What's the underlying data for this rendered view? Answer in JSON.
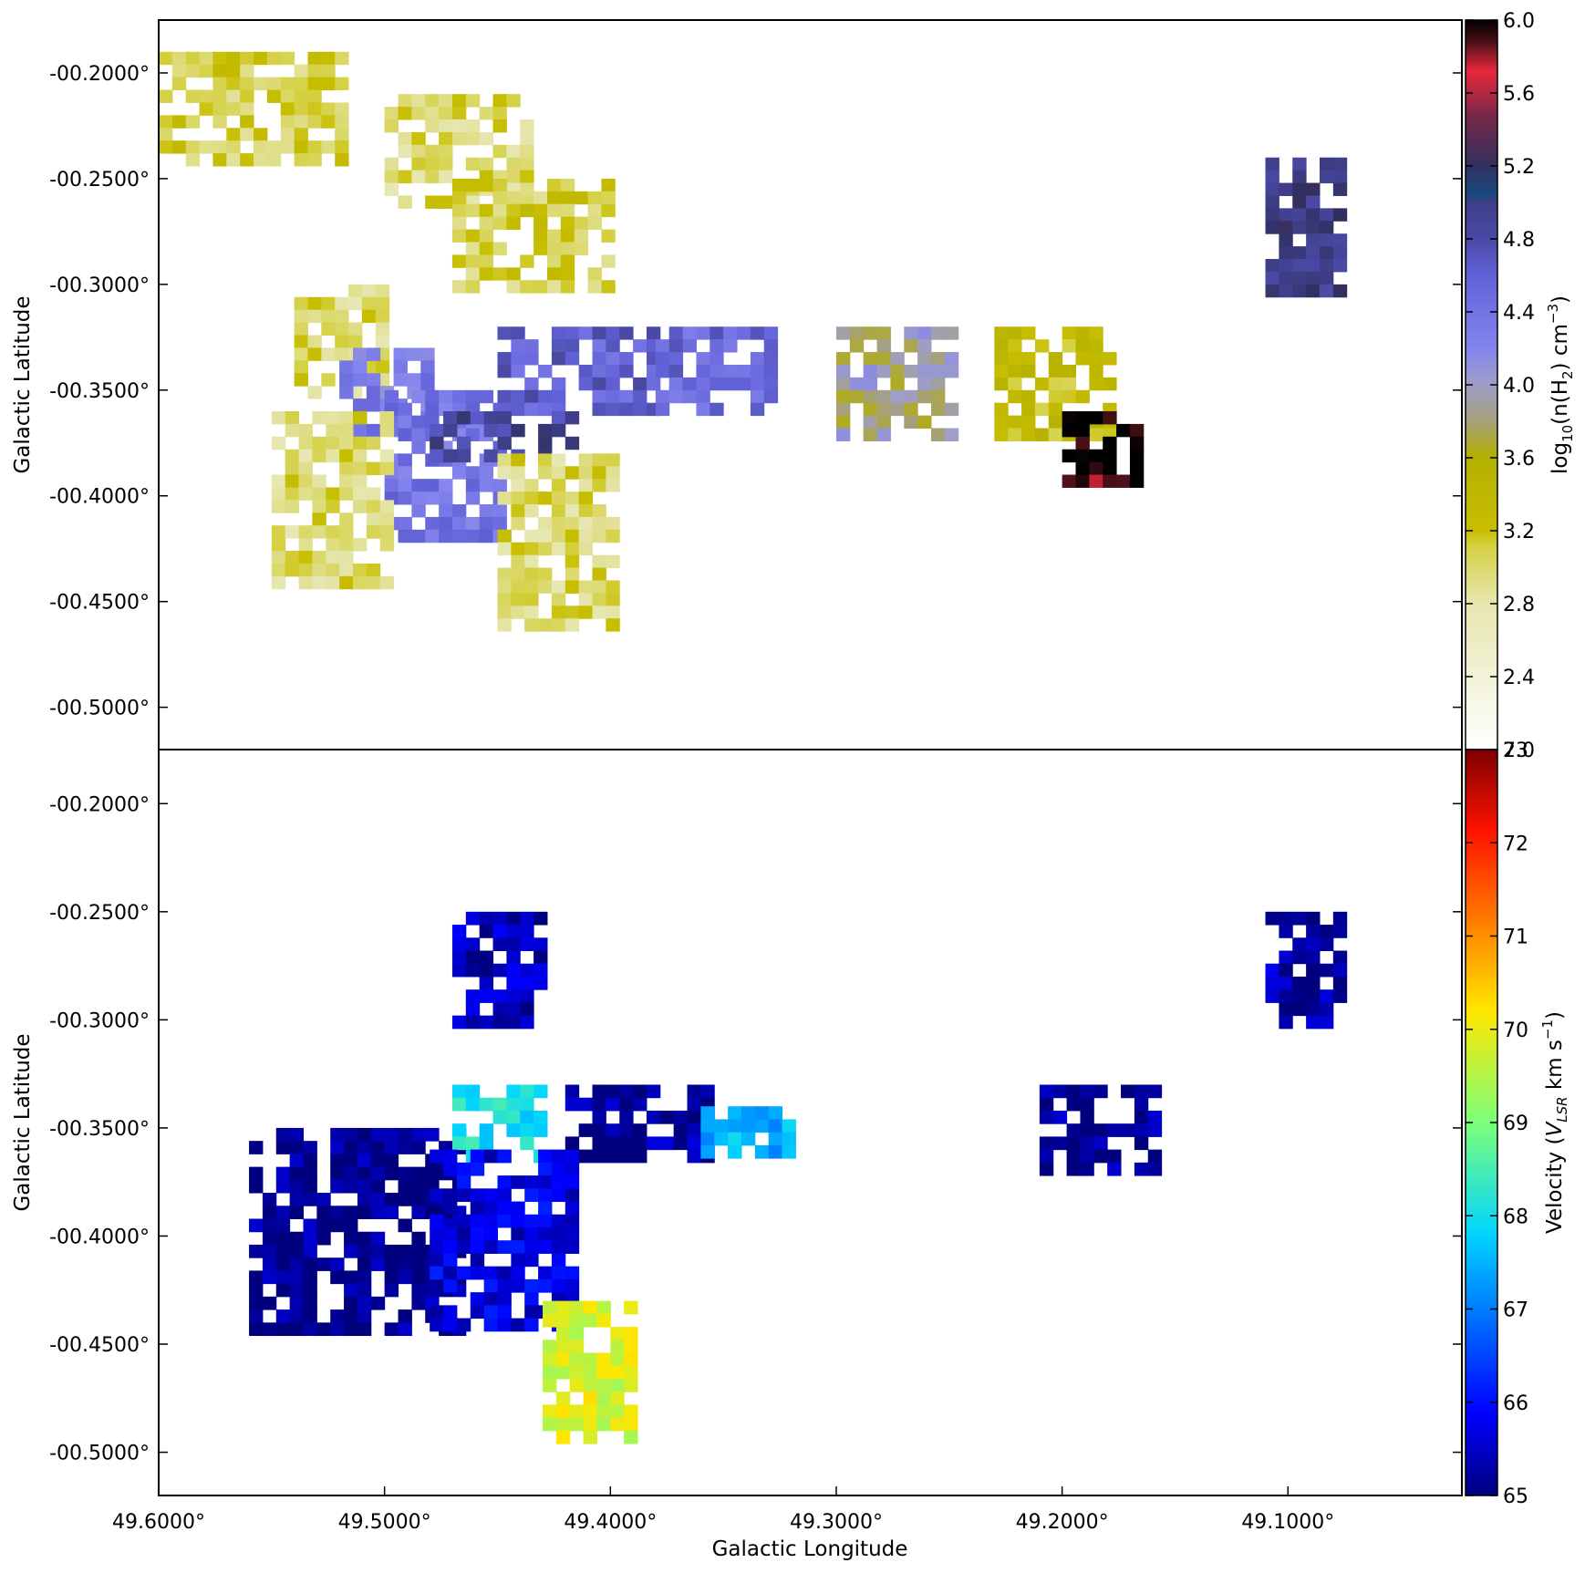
{
  "chart_data": [
    {
      "type": "heatmap",
      "ylabel": "Galactic Latitude",
      "xlabel": "",
      "xlim": [
        49.6,
        49.023
      ],
      "ylim": [
        -0.52,
        -0.175
      ],
      "y_ticks": [
        -0.2,
        -0.25,
        -0.3,
        -0.35,
        -0.4,
        -0.45,
        -0.5
      ],
      "y_tick_labels": [
        "-00.2000°",
        "-00.2500°",
        "-00.3000°",
        "-00.3500°",
        "-00.4000°",
        "-00.4500°",
        "-00.5000°"
      ],
      "colorbar": {
        "label": "log10(n(H2) cm^-3)",
        "range": [
          2.0,
          6.0
        ],
        "ticks": [
          2.0,
          2.4,
          2.8,
          3.2,
          3.6,
          4.0,
          4.4,
          4.8,
          5.2,
          5.6,
          6.0
        ],
        "tick_labels": [
          "2.0",
          "2.4",
          "2.8",
          "3.2",
          "3.6",
          "4.0",
          "4.4",
          "4.8",
          "5.2",
          "5.6",
          "6.0"
        ]
      },
      "regions": [
        {
          "l_range": [
            49.6,
            49.52
          ],
          "b_range": [
            -0.19,
            -0.24
          ],
          "value": 3.1
        },
        {
          "l_range": [
            49.5,
            49.44
          ],
          "b_range": [
            -0.21,
            -0.26
          ],
          "value": 3.0
        },
        {
          "l_range": [
            49.47,
            49.4
          ],
          "b_range": [
            -0.25,
            -0.3
          ],
          "value": 3.1
        },
        {
          "l_range": [
            49.54,
            49.5
          ],
          "b_range": [
            -0.3,
            -0.35
          ],
          "value": 3.0
        },
        {
          "l_range": [
            49.52,
            49.48
          ],
          "b_range": [
            -0.33,
            -0.37
          ],
          "value": 4.3
        },
        {
          "l_range": [
            49.5,
            49.45
          ],
          "b_range": [
            -0.35,
            -0.42
          ],
          "value": 4.4
        },
        {
          "l_range": [
            49.45,
            49.38
          ],
          "b_range": [
            -0.32,
            -0.36
          ],
          "value": 4.6
        },
        {
          "l_range": [
            49.48,
            49.42
          ],
          "b_range": [
            -0.36,
            -0.38
          ],
          "value": 4.9
        },
        {
          "l_range": [
            49.55,
            49.5
          ],
          "b_range": [
            -0.36,
            -0.44
          ],
          "value": 3.0
        },
        {
          "l_range": [
            49.45,
            49.4
          ],
          "b_range": [
            -0.38,
            -0.46
          ],
          "value": 3.0
        },
        {
          "l_range": [
            49.38,
            49.33
          ],
          "b_range": [
            -0.32,
            -0.36
          ],
          "value": 4.5
        },
        {
          "l_range": [
            49.3,
            49.25
          ],
          "b_range": [
            -0.32,
            -0.37
          ],
          "value": 3.9
        },
        {
          "l_range": [
            49.23,
            49.18
          ],
          "b_range": [
            -0.32,
            -0.37
          ],
          "value": 3.3
        },
        {
          "l_range": [
            49.11,
            49.08
          ],
          "b_range": [
            -0.24,
            -0.3
          ],
          "value": 5.0
        },
        {
          "l_range": [
            49.2,
            49.17
          ],
          "b_range": [
            -0.36,
            -0.39
          ],
          "value": 6.0
        }
      ]
    },
    {
      "type": "heatmap",
      "ylabel": "Galactic Latitude",
      "xlabel": "Galactic Longitude",
      "xlim": [
        49.6,
        49.023
      ],
      "ylim": [
        -0.52,
        -0.175
      ],
      "x_ticks": [
        49.6,
        49.5,
        49.4,
        49.3,
        49.2,
        49.1
      ],
      "x_tick_labels": [
        "49.6000°",
        "49.5000°",
        "49.4000°",
        "49.3000°",
        "49.2000°",
        "49.1000°"
      ],
      "y_ticks": [
        -0.2,
        -0.25,
        -0.3,
        -0.35,
        -0.4,
        -0.45,
        -0.5
      ],
      "y_tick_labels": [
        "-00.2000°",
        "-00.2500°",
        "-00.3000°",
        "-00.3500°",
        "-00.4000°",
        "-00.4500°",
        "-00.5000°"
      ],
      "colorbar": {
        "label": "Velocity (V_LSR km s^-1)",
        "range": [
          65,
          73
        ],
        "ticks": [
          65,
          66,
          67,
          68,
          69,
          70,
          71,
          72,
          73
        ],
        "tick_labels": [
          "65",
          "66",
          "67",
          "68",
          "69",
          "70",
          "71",
          "72",
          "73"
        ]
      },
      "regions": [
        {
          "l_range": [
            49.56,
            49.47
          ],
          "b_range": [
            -0.35,
            -0.44
          ],
          "value": 65.1
        },
        {
          "l_range": [
            49.47,
            49.43
          ],
          "b_range": [
            -0.33,
            -0.36
          ],
          "value": 68.0
        },
        {
          "l_range": [
            49.48,
            49.42
          ],
          "b_range": [
            -0.36,
            -0.44
          ],
          "value": 65.7
        },
        {
          "l_range": [
            49.42,
            49.36
          ],
          "b_range": [
            -0.33,
            -0.36
          ],
          "value": 65.2
        },
        {
          "l_range": [
            49.43,
            49.39
          ],
          "b_range": [
            -0.43,
            -0.49
          ],
          "value": 69.8
        },
        {
          "l_range": [
            49.36,
            49.32
          ],
          "b_range": [
            -0.34,
            -0.36
          ],
          "value": 67.5
        },
        {
          "l_range": [
            49.21,
            49.16
          ],
          "b_range": [
            -0.33,
            -0.37
          ],
          "value": 65.1
        },
        {
          "l_range": [
            49.11,
            49.08
          ],
          "b_range": [
            -0.25,
            -0.3
          ],
          "value": 65.3
        },
        {
          "l_range": [
            49.47,
            49.43
          ],
          "b_range": [
            -0.25,
            -0.3
          ],
          "value": 65.4
        }
      ]
    }
  ]
}
